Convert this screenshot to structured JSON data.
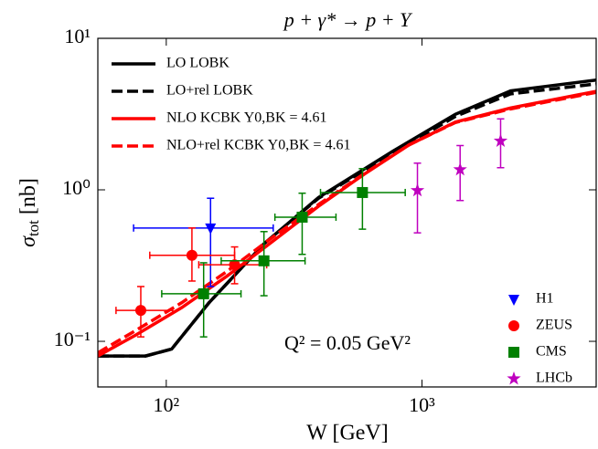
{
  "chart_data": {
    "type": "line",
    "title": "p + γ* → p + Υ",
    "xlabel": "W [GeV]",
    "ylabel": {
      "symbol": "σ",
      "subscript": "tot",
      "unit": "[nb]"
    },
    "annotation": "Q² = 0.05 GeV²",
    "log_x": true,
    "log_y": true,
    "xlim": [
      54,
      4800
    ],
    "ylim": [
      0.05,
      10
    ],
    "xticks": [
      {
        "value": 100,
        "label": "10²"
      },
      {
        "value": 1000,
        "label": "10³"
      }
    ],
    "yticks": [
      {
        "value": 0.1,
        "label": "10⁻¹"
      },
      {
        "value": 1,
        "label": "10⁰"
      },
      {
        "value": 10,
        "label": "10¹"
      }
    ],
    "legend": "upper left",
    "points_legend": "lower right",
    "series": [
      {
        "name": "LO LOBK",
        "color": "#000000",
        "style": "solid",
        "x": [
          54,
          83,
          105,
          147,
          241,
          394,
          770,
          1350,
          2220,
          4800
        ],
        "values": [
          0.08,
          0.08,
          0.089,
          0.18,
          0.44,
          0.89,
          1.8,
          3.15,
          4.5,
          5.3
        ]
      },
      {
        "name": "LO+rel LOBK",
        "color": "#000000",
        "style": "dashed",
        "x": [
          54,
          83,
          105,
          147,
          241,
          394,
          770,
          1350,
          2220,
          4800
        ],
        "values": [
          0.08,
          0.08,
          0.089,
          0.18,
          0.44,
          0.88,
          1.75,
          3.05,
          4.3,
          5.0
        ]
      },
      {
        "name": "NLO KCBK Y0,BK = 4.61",
        "color": "#ff0000",
        "style": "solid",
        "x": [
          54,
          76,
          115,
          173,
          262,
          394,
          595,
          890,
          1350,
          2220,
          4800
        ],
        "values": [
          0.08,
          0.11,
          0.167,
          0.27,
          0.46,
          0.78,
          1.27,
          1.98,
          2.8,
          3.47,
          4.47
        ]
      },
      {
        "name": "NLO+rel KCBK Y0,BK = 4.61",
        "color": "#ff0000",
        "style": "dashed",
        "x": [
          54,
          76,
          115,
          173,
          262,
          394,
          595,
          890,
          1350,
          2220,
          4800
        ],
        "values": [
          0.084,
          0.118,
          0.18,
          0.29,
          0.49,
          0.8,
          1.28,
          1.98,
          2.78,
          3.42,
          4.4
        ]
      }
    ],
    "error_points": [
      {
        "name": "H1",
        "color": "#0000ff",
        "marker": "triangle-down",
        "x": [
          149
        ],
        "values": [
          0.56
        ],
        "xlow": [
          74.5
        ],
        "xhigh": [
          262
        ],
        "ylow": [
          0.23
        ],
        "yhigh": [
          0.88
        ]
      },
      {
        "name": "ZEUS",
        "color": "#ff0000",
        "marker": "circle",
        "x": [
          79.5,
          126,
          185
        ],
        "values": [
          0.16,
          0.37,
          0.32
        ],
        "xlow": [
          63.6,
          86.2,
          134
        ],
        "xhigh": [
          106,
          185,
          247
        ],
        "ylow": [
          0.107,
          0.25,
          0.24
        ],
        "yhigh": [
          0.23,
          0.56,
          0.42
        ]
      },
      {
        "name": "CMS",
        "color": "#008000",
        "marker": "square",
        "x": [
          140,
          241,
          340,
          585
        ],
        "values": [
          0.206,
          0.34,
          0.66,
          0.96
        ],
        "xlow": [
          96,
          164,
          266,
          401
        ],
        "xhigh": [
          196,
          349,
          461,
          860
        ],
        "ylow": [
          0.107,
          0.2,
          0.375,
          0.55
        ],
        "yhigh": [
          0.33,
          0.53,
          0.95,
          1.38
        ]
      },
      {
        "name": "LHCb",
        "color": "#bf00bf",
        "marker": "star",
        "x": [
          960,
          1410,
          2030
        ],
        "values": [
          0.99,
          1.36,
          2.1
        ],
        "xlow": [
          null,
          null,
          null
        ],
        "xhigh": [
          null,
          null,
          null
        ],
        "ylow": [
          0.52,
          0.85,
          1.4
        ],
        "yhigh": [
          1.5,
          1.96,
          2.94
        ]
      }
    ]
  }
}
